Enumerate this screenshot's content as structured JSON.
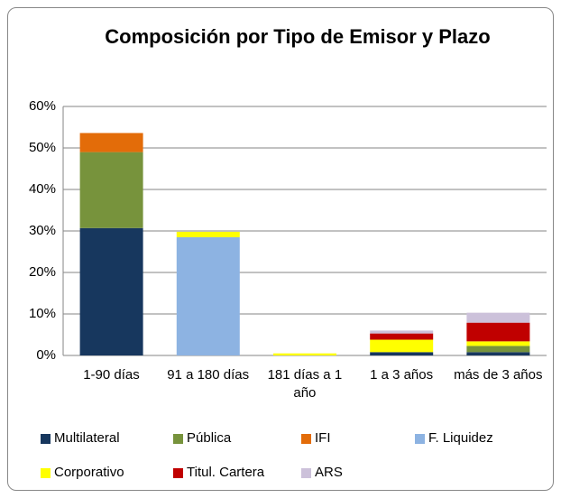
{
  "chart_data": {
    "type": "stacked_bar",
    "title": "Composición por Tipo de Emisor y Plazo",
    "categories": [
      "1-90 días",
      "91 a 180 días",
      "181 días a 1 año",
      "1 a 3 años",
      "más de 3 años"
    ],
    "series": [
      {
        "name": "Multilateral",
        "color": "#17375e",
        "values": [
          30.7,
          0,
          0,
          0.8,
          0.8
        ]
      },
      {
        "name": "Pública",
        "color": "#77933c",
        "values": [
          18.3,
          0,
          0,
          0,
          1.5
        ]
      },
      {
        "name": "IFI",
        "color": "#e36c09",
        "values": [
          4.6,
          0,
          0,
          0,
          0
        ]
      },
      {
        "name": "F. Liquidez",
        "color": "#8db3e2",
        "values": [
          0,
          28.5,
          0,
          0,
          0
        ]
      },
      {
        "name": "Corporativo",
        "color": "#ffff00",
        "values": [
          0,
          1.3,
          0.5,
          3.0,
          1.1
        ]
      },
      {
        "name": "Titul. Cartera",
        "color": "#c00000",
        "values": [
          0,
          0,
          0,
          1.5,
          4.5
        ]
      },
      {
        "name": "ARS",
        "color": "#ccc1da",
        "values": [
          0,
          0,
          0,
          0.7,
          2.4
        ]
      }
    ],
    "ylim": [
      0,
      60
    ],
    "yticks": [
      {
        "value": 0,
        "label": "0%"
      },
      {
        "value": 10,
        "label": "10%"
      },
      {
        "value": 20,
        "label": "20%"
      },
      {
        "value": 30,
        "label": "30%"
      },
      {
        "value": 40,
        "label": "40%"
      },
      {
        "value": 50,
        "label": "50%"
      },
      {
        "value": 60,
        "label": "60%"
      }
    ],
    "grid": true
  }
}
